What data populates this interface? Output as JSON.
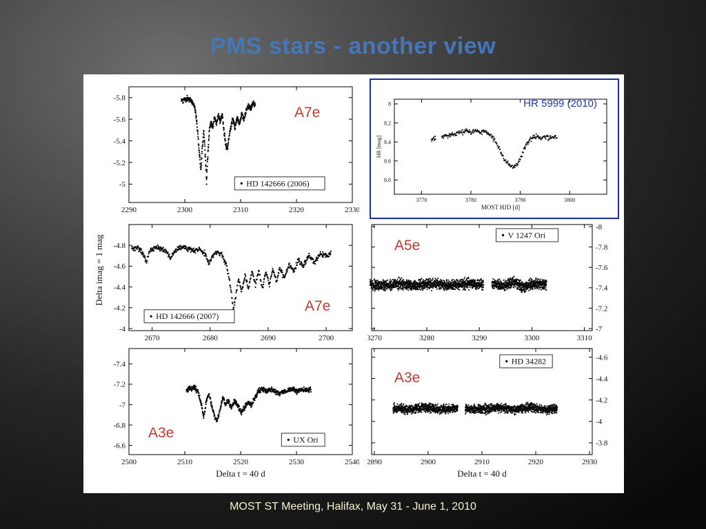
{
  "slide": {
    "title": "PMS stars - another view",
    "footer": "MOST ST Meeting, Halifax, May 31 - June 1, 2010",
    "side_label": "Delta imag = 1 mag",
    "hr_label": "HR 5999 (2010)",
    "labels": {
      "a7e_2006": "A7e",
      "a5e": "A5e",
      "a7e_2007": "A7e",
      "a3e_hd34282": "A3e",
      "a3e_ux": "A3e"
    },
    "colors": {
      "title_blue": "#4577b8",
      "footer_cream": "#f4f4cf",
      "annotation_red": "#c13a32",
      "hr_box_blue": "#1b2f9c",
      "hr_text_blue": "#2236a8",
      "plot_ink": "#111111"
    }
  },
  "chart_data": [
    {
      "id": "hd142666-2006",
      "type": "scatter",
      "legend": {
        "label": "HD 142666 (2006)",
        "cx": 0.675,
        "cy": 0.835
      },
      "xlim": [
        2290,
        2330
      ],
      "ylim": [
        -5.9,
        -4.83
      ],
      "xticks": [
        2290,
        2300,
        2310,
        2320,
        2330
      ],
      "yticks": [
        -5.8,
        -5.6,
        -5.4,
        -5.2,
        -5
      ],
      "ytick_side": "left",
      "xlabel": "",
      "ylabel": "",
      "margins": {
        "l": 46,
        "t": 10,
        "r": 10,
        "b": 26
      },
      "npts": 520,
      "jitter": 0.012,
      "dot": 1.1,
      "seed": 11,
      "gaps": [],
      "points": [
        [
          2299.4,
          -5.77
        ],
        [
          2300,
          -5.78
        ],
        [
          2300.6,
          -5.79
        ],
        [
          2301.2,
          -5.77
        ],
        [
          2301.8,
          -5.72
        ],
        [
          2302.2,
          -5.55
        ],
        [
          2302.6,
          -5.3
        ],
        [
          2302.9,
          -5.12
        ],
        [
          2303.1,
          -5.3
        ],
        [
          2303.4,
          -5.5
        ],
        [
          2303.7,
          -5.25
        ],
        [
          2303.9,
          -5.02
        ],
        [
          2304.1,
          -5.25
        ],
        [
          2304.4,
          -5.5
        ],
        [
          2304.7,
          -5.58
        ],
        [
          2305,
          -5.52
        ],
        [
          2305.3,
          -5.62
        ],
        [
          2305.7,
          -5.56
        ],
        [
          2306,
          -5.64
        ],
        [
          2306.3,
          -5.58
        ],
        [
          2306.7,
          -5.64
        ],
        [
          2307,
          -5.5
        ],
        [
          2307.3,
          -5.38
        ],
        [
          2307.6,
          -5.32
        ],
        [
          2307.9,
          -5.42
        ],
        [
          2308.2,
          -5.52
        ],
        [
          2308.6,
          -5.6
        ],
        [
          2309,
          -5.52
        ],
        [
          2309.4,
          -5.62
        ],
        [
          2309.8,
          -5.55
        ],
        [
          2310.2,
          -5.65
        ],
        [
          2310.6,
          -5.6
        ],
        [
          2311,
          -5.68
        ],
        [
          2311.4,
          -5.72
        ],
        [
          2311.8,
          -5.7
        ],
        [
          2312.2,
          -5.75
        ],
        [
          2312.6,
          -5.74
        ]
      ]
    },
    {
      "id": "hr5999-2010",
      "type": "scatter",
      "xlim": [
        3764.5,
        3807.5
      ],
      "ylim": [
        7.95,
        8.95
      ],
      "xticks": [
        3770,
        3780,
        3790,
        3800
      ],
      "yticks": [
        8,
        8.2,
        8.4,
        8.6,
        8.8
      ],
      "ytick_side": "left",
      "xlabel": "MOST HJD [d]",
      "xlabel_dy": 22,
      "ylabel": "HR [mag]",
      "tickfont": 8,
      "labelfont": 9,
      "margins": {
        "l": 34,
        "t": 28,
        "r": 16,
        "b": 34
      },
      "npts": 300,
      "jitter": 0.012,
      "dot": 1.0,
      "seed": 23,
      "gaps": [
        [
          3772.9,
          3774.1
        ]
      ],
      "points": [
        [
          3772,
          8.38
        ],
        [
          3772.8,
          8.36
        ],
        [
          3774.2,
          8.35
        ],
        [
          3775.5,
          8.33
        ],
        [
          3777,
          8.31
        ],
        [
          3778.5,
          8.29
        ],
        [
          3780,
          8.3
        ],
        [
          3781,
          8.28
        ],
        [
          3782,
          8.3
        ],
        [
          3783,
          8.29
        ],
        [
          3784,
          8.33
        ],
        [
          3785,
          8.4
        ],
        [
          3786,
          8.5
        ],
        [
          3787,
          8.6
        ],
        [
          3787.8,
          8.65
        ],
        [
          3788.6,
          8.66
        ],
        [
          3789.4,
          8.63
        ],
        [
          3790.2,
          8.55
        ],
        [
          3791,
          8.45
        ],
        [
          3791.8,
          8.38
        ],
        [
          3792.6,
          8.35
        ],
        [
          3793.4,
          8.34
        ],
        [
          3794.2,
          8.37
        ],
        [
          3795,
          8.34
        ],
        [
          3795.8,
          8.36
        ],
        [
          3796.6,
          8.34
        ],
        [
          3797.4,
          8.35
        ]
      ]
    },
    {
      "id": "hd142666-2007",
      "type": "scatter",
      "legend": {
        "label": "HD 142666 (2007)",
        "cx": 0.27,
        "cy": 0.865
      },
      "xlim": [
        2666,
        2704.5
      ],
      "ylim": [
        -5.0,
        -3.98
      ],
      "xticks": [
        2670,
        2680,
        2690,
        2700
      ],
      "yticks": [
        -4.8,
        -4.6,
        -4.4,
        -4.2,
        -4
      ],
      "ytick_side": "left",
      "xlabel": "",
      "ylabel": "",
      "margins": {
        "l": 46,
        "t": 6,
        "r": 10,
        "b": 22
      },
      "npts": 650,
      "jitter": 0.012,
      "dot": 1.1,
      "seed": 37,
      "gaps": [],
      "points": [
        [
          2666.5,
          -4.76
        ],
        [
          2667.5,
          -4.78
        ],
        [
          2668.5,
          -4.72
        ],
        [
          2669,
          -4.63
        ],
        [
          2669.5,
          -4.74
        ],
        [
          2670.5,
          -4.78
        ],
        [
          2671.5,
          -4.77
        ],
        [
          2672.5,
          -4.74
        ],
        [
          2673.2,
          -4.68
        ],
        [
          2673.9,
          -4.75
        ],
        [
          2675,
          -4.78
        ],
        [
          2676,
          -4.77
        ],
        [
          2677,
          -4.75
        ],
        [
          2678,
          -4.77
        ],
        [
          2679,
          -4.73
        ],
        [
          2679.8,
          -4.62
        ],
        [
          2680.4,
          -4.7
        ],
        [
          2681,
          -4.74
        ],
        [
          2682,
          -4.71
        ],
        [
          2682.8,
          -4.62
        ],
        [
          2683.4,
          -4.45
        ],
        [
          2684,
          -4.18
        ],
        [
          2684.4,
          -4.3
        ],
        [
          2684.9,
          -4.48
        ],
        [
          2685.4,
          -4.34
        ],
        [
          2686,
          -4.52
        ],
        [
          2686.6,
          -4.38
        ],
        [
          2687.2,
          -4.55
        ],
        [
          2687.8,
          -4.42
        ],
        [
          2688.4,
          -4.56
        ],
        [
          2689,
          -4.38
        ],
        [
          2689.6,
          -4.55
        ],
        [
          2690.2,
          -4.42
        ],
        [
          2690.8,
          -4.57
        ],
        [
          2691.4,
          -4.44
        ],
        [
          2692,
          -4.58
        ],
        [
          2692.8,
          -4.48
        ],
        [
          2693.6,
          -4.62
        ],
        [
          2694.4,
          -4.55
        ],
        [
          2695.2,
          -4.66
        ],
        [
          2696,
          -4.6
        ],
        [
          2697,
          -4.7
        ],
        [
          2698,
          -4.64
        ],
        [
          2699,
          -4.72
        ],
        [
          2700,
          -4.7
        ],
        [
          2700.8,
          -4.72
        ]
      ]
    },
    {
      "id": "v1247-ori",
      "type": "scatter",
      "legend": {
        "label": "V 1247 Ori",
        "cx": 0.705,
        "cy": 0.1
      },
      "xlim": [
        3269.5,
        3311.5
      ],
      "ylim": [
        -8.02,
        -6.98
      ],
      "xticks": [
        3270,
        3280,
        3290,
        3300,
        3310
      ],
      "yticks": [
        -8,
        -7.8,
        -7.6,
        -7.4,
        -7.2,
        -7
      ],
      "ytick_side": "right",
      "xlabel": "",
      "ylabel": "",
      "margins": {
        "l": 6,
        "t": 6,
        "r": 46,
        "b": 22
      },
      "npts": 2400,
      "jitter": 0.024,
      "dot": 1.0,
      "seed": 53,
      "gaps": [
        [
          3290.8,
          3292.4
        ]
      ],
      "points": [
        [
          3269.2,
          -7.43
        ],
        [
          3272,
          -7.42
        ],
        [
          3275,
          -7.44
        ],
        [
          3278,
          -7.42
        ],
        [
          3281,
          -7.44
        ],
        [
          3284,
          -7.42
        ],
        [
          3287,
          -7.44
        ],
        [
          3290,
          -7.43
        ],
        [
          3292.6,
          -7.44
        ],
        [
          3294.5,
          -7.42
        ],
        [
          3296.5,
          -7.46
        ],
        [
          3298.5,
          -7.4
        ],
        [
          3300.5,
          -7.44
        ],
        [
          3302.8,
          -7.43
        ]
      ]
    },
    {
      "id": "ux-ori",
      "type": "scatter",
      "legend": {
        "label": "UX Ori",
        "cx": 0.78,
        "cy": 0.86
      },
      "xlim": [
        2500,
        2540
      ],
      "ylim": [
        -7.55,
        -6.51
      ],
      "xticks": [
        2500,
        2510,
        2520,
        2530,
        2540
      ],
      "yticks": [
        -7.4,
        -7.2,
        -7,
        -6.8,
        -6.6
      ],
      "ytick_side": "left",
      "xlabel": "Delta t = 40 d",
      "xlabel_dy": 32,
      "ylabel": "",
      "margins": {
        "l": 46,
        "t": 4,
        "r": 10,
        "b": 40
      },
      "npts": 700,
      "jitter": 0.012,
      "dot": 1.1,
      "seed": 67,
      "gaps": [],
      "points": [
        [
          2510.3,
          -7.13
        ],
        [
          2511,
          -7.16
        ],
        [
          2511.8,
          -7.17
        ],
        [
          2512.4,
          -7.12
        ],
        [
          2513,
          -7.0
        ],
        [
          2513.4,
          -6.87
        ],
        [
          2513.8,
          -7.02
        ],
        [
          2514.3,
          -7.1
        ],
        [
          2514.8,
          -7.0
        ],
        [
          2515.3,
          -6.88
        ],
        [
          2515.8,
          -6.84
        ],
        [
          2516.3,
          -6.95
        ],
        [
          2516.8,
          -7.07
        ],
        [
          2517.3,
          -7.0
        ],
        [
          2517.8,
          -7.05
        ],
        [
          2518.3,
          -6.97
        ],
        [
          2518.9,
          -7.04
        ],
        [
          2519.5,
          -6.98
        ],
        [
          2520.1,
          -6.92
        ],
        [
          2520.7,
          -6.97
        ],
        [
          2521.3,
          -7.02
        ],
        [
          2521.9,
          -6.99
        ],
        [
          2522.5,
          -7.06
        ],
        [
          2523.1,
          -7.12
        ],
        [
          2523.8,
          -7.15
        ],
        [
          2524.6,
          -7.13
        ],
        [
          2525.4,
          -7.15
        ],
        [
          2526.2,
          -7.13
        ],
        [
          2527,
          -7.11
        ],
        [
          2527.8,
          -7.13
        ],
        [
          2528.6,
          -7.14
        ],
        [
          2529.4,
          -7.15
        ],
        [
          2530.2,
          -7.13
        ],
        [
          2531,
          -7.15
        ],
        [
          2531.8,
          -7.14
        ],
        [
          2532.6,
          -7.15
        ]
      ]
    },
    {
      "id": "hd34282",
      "type": "scatter",
      "legend": {
        "label": "HD 34282",
        "cx": 0.7,
        "cy": 0.12
      },
      "xlim": [
        2889.5,
        2930.5
      ],
      "ylim": [
        -4.68,
        -3.69
      ],
      "xticks": [
        2890,
        2900,
        2910,
        2920,
        2930
      ],
      "yticks": [
        -4.6,
        -4.4,
        -4.2,
        -4,
        -3.8
      ],
      "ytick_side": "right",
      "xlabel": "Delta t = 40 d",
      "xlabel_dy": 32,
      "ylabel": "",
      "margins": {
        "l": 6,
        "t": 4,
        "r": 46,
        "b": 40
      },
      "npts": 2200,
      "jitter": 0.02,
      "dot": 1.0,
      "seed": 83,
      "gaps": [
        [
          2905.5,
          2906.9
        ]
      ],
      "points": [
        [
          2893.5,
          -4.12
        ],
        [
          2896,
          -4.11
        ],
        [
          2899,
          -4.13
        ],
        [
          2902,
          -4.11
        ],
        [
          2905,
          -4.12
        ],
        [
          2907.2,
          -4.12
        ],
        [
          2910,
          -4.11
        ],
        [
          2913,
          -4.13
        ],
        [
          2916,
          -4.11
        ],
        [
          2919,
          -4.13
        ],
        [
          2921.5,
          -4.11
        ],
        [
          2924,
          -4.12
        ]
      ]
    }
  ]
}
